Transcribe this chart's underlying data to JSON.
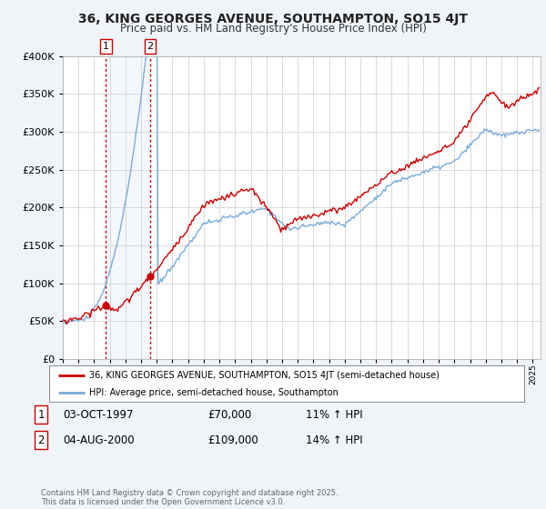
{
  "title": "36, KING GEORGES AVENUE, SOUTHAMPTON, SO15 4JT",
  "subtitle": "Price paid vs. HM Land Registry's House Price Index (HPI)",
  "legend_label_property": "36, KING GEORGES AVENUE, SOUTHAMPTON, SO15 4JT (semi-detached house)",
  "legend_label_hpi": "HPI: Average price, semi-detached house, Southampton",
  "footer": "Contains HM Land Registry data © Crown copyright and database right 2025.\nThis data is licensed under the Open Government Licence v3.0.",
  "sale1_date": 1997.75,
  "sale1_price": 70000,
  "sale1_label": "03-OCT-1997",
  "sale1_hpi_pct": "11% ↑ HPI",
  "sale2_date": 2000.58,
  "sale2_price": 109000,
  "sale2_label": "04-AUG-2000",
  "sale2_hpi_pct": "14% ↑ HPI",
  "ylim": [
    0,
    400000
  ],
  "xlim": [
    1995.0,
    2025.5
  ],
  "property_color": "#cc0000",
  "hpi_color": "#7aabdb",
  "background_color": "#f0f4f8",
  "plot_bg_color": "#ffffff",
  "grid_color": "#cccccc"
}
